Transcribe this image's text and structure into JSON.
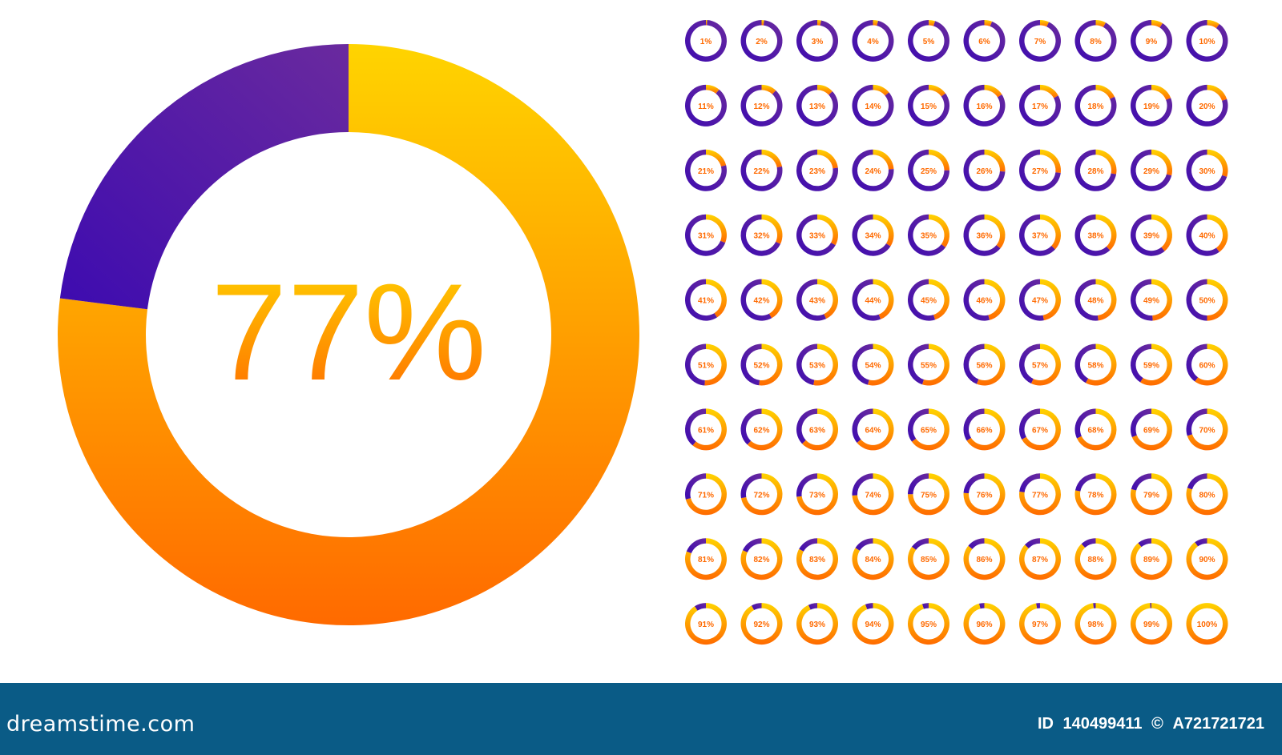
{
  "chart_data": {
    "type": "pie",
    "main": {
      "value": 77,
      "label": "77%"
    },
    "gauges": [
      1,
      2,
      3,
      4,
      5,
      6,
      7,
      8,
      9,
      10,
      11,
      12,
      13,
      14,
      15,
      16,
      17,
      18,
      19,
      20,
      21,
      22,
      23,
      24,
      25,
      26,
      27,
      28,
      29,
      30,
      31,
      32,
      33,
      34,
      35,
      36,
      37,
      38,
      39,
      40,
      41,
      42,
      43,
      44,
      45,
      46,
      47,
      48,
      49,
      50,
      51,
      52,
      53,
      54,
      55,
      56,
      57,
      58,
      59,
      60,
      61,
      62,
      63,
      64,
      65,
      66,
      67,
      68,
      69,
      70,
      71,
      72,
      73,
      74,
      75,
      76,
      77,
      78,
      79,
      80,
      81,
      82,
      83,
      84,
      85,
      86,
      87,
      88,
      89,
      90,
      91,
      92,
      93,
      94,
      95,
      96,
      97,
      98,
      99,
      100
    ],
    "colors": {
      "fill_top": "#ffd400",
      "fill_bottom": "#ff6a00",
      "remainder_start": "#3d0bb0",
      "remainder_end": "#6a2a9e",
      "text_top": "#ffd400",
      "text_bottom": "#ff6a00"
    }
  },
  "footer": {
    "logo": "dreamstime.com",
    "id_label": "ID",
    "id_value": "140499411",
    "copyright_symbol": "©",
    "author": "A721721721"
  }
}
